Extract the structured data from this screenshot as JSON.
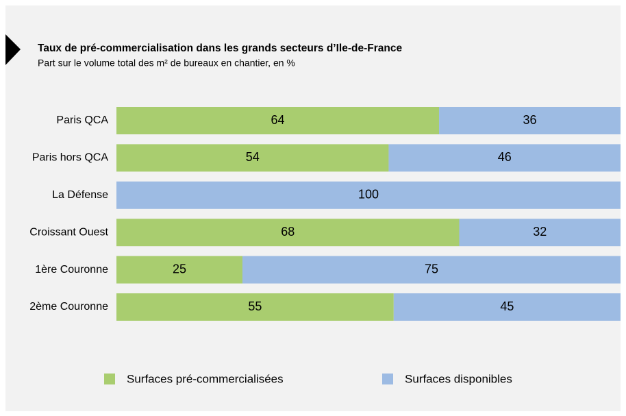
{
  "chart_data": {
    "type": "stacked_barh",
    "title": "Taux de pré-commercialisation dans les grands secteurs d’Ile-de-France",
    "subtitle": "Part sur le volume total des m² de bureaux en chantier, en %",
    "categories": [
      "Paris QCA",
      "Paris hors QCA",
      "La Défense",
      "Croissant Ouest",
      "1ère Couronne",
      "2ème Couronne"
    ],
    "series": [
      {
        "name": "Surfaces pré-commercialisées",
        "color": "#a9cd6f",
        "values": [
          64,
          54,
          0,
          68,
          25,
          55
        ]
      },
      {
        "name": "Surfaces disponibles",
        "color": "#9dbbe3",
        "values": [
          36,
          46,
          100,
          32,
          75,
          45
        ]
      }
    ],
    "xlim": [
      0,
      100
    ]
  }
}
